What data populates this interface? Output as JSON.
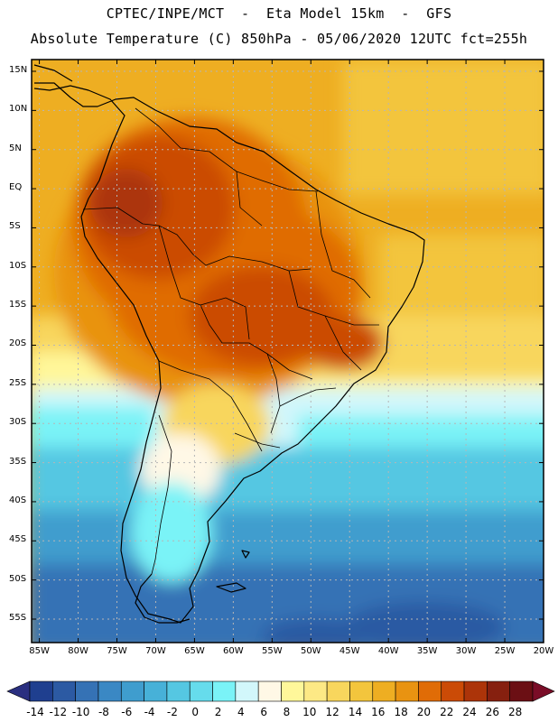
{
  "header": {
    "line1": "CPTEC/INPE/MCT  -  Eta Model 15km  -  GFS",
    "line2": "Absolute Temperature (C) 850hPa - 05/06/2020 12UTC fct=255h"
  },
  "axes": {
    "lat_labels": [
      "15N",
      "10N",
      "5N",
      "EQ",
      "5S",
      "10S",
      "15S",
      "20S",
      "25S",
      "30S",
      "35S",
      "40S",
      "45S",
      "50S",
      "55S"
    ],
    "lon_labels": [
      "85W",
      "80W",
      "75W",
      "70W",
      "65W",
      "60W",
      "55W",
      "50W",
      "45W",
      "40W",
      "35W",
      "30W",
      "25W",
      "20W"
    ]
  },
  "colorbar": {
    "labels": [
      "-14",
      "-12",
      "-10",
      "-8",
      "-6",
      "-4",
      "-2",
      "0",
      "2",
      "4",
      "6",
      "8",
      "10",
      "12",
      "14",
      "16",
      "18",
      "20",
      "22",
      "24",
      "26",
      "28"
    ],
    "colors": [
      "#1f3f8f",
      "#2c5aa3",
      "#3572b5",
      "#3a88c4",
      "#3f9dce",
      "#47b1d8",
      "#55c7e2",
      "#66dcec",
      "#7af3f7",
      "#d2f7fb",
      "#fff8e6",
      "#fff79a",
      "#fde985",
      "#f8d65d",
      "#f3c53d",
      "#eeae22",
      "#e99311",
      "#e06c06",
      "#cb4b06",
      "#ac3409",
      "#86200f",
      "#6b0f14"
    ],
    "under_color": "#2a2f80",
    "over_color": "#7a0d27"
  }
}
